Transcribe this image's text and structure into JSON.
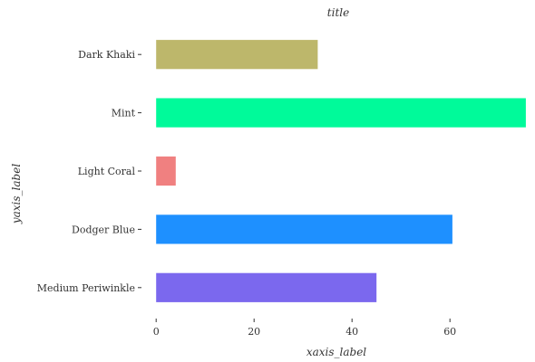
{
  "chart_data": {
    "type": "bar",
    "orientation": "horizontal",
    "title": "title",
    "xlabel": "xaxis_label",
    "ylabel": "yaxis_label",
    "categories": [
      "Medium Periwinkle",
      "Dodger Blue",
      "Light Coral",
      "Mint",
      "Dark Khaki"
    ],
    "values": [
      45,
      60.5,
      4,
      75.5,
      33
    ],
    "colors": [
      "#7b68ee",
      "#1e90ff",
      "#f08080",
      "#00fa9a",
      "#bdb76b"
    ],
    "xlim": [
      -3,
      77
    ],
    "xticks": [
      0,
      20,
      40,
      60
    ],
    "grid": false,
    "legend": "none"
  }
}
